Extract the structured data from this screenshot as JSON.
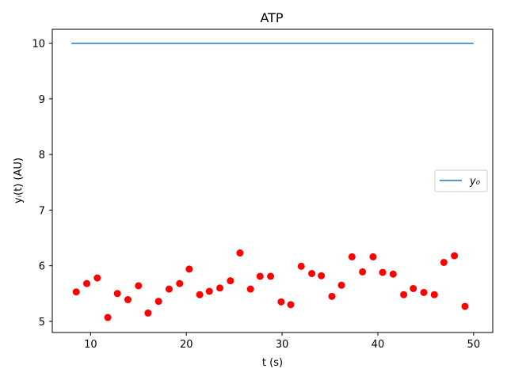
{
  "chart_data": {
    "type": "scatter",
    "title": "ATP",
    "xlabel": "t (s)",
    "ylabel": "yᵢ(t) (AU)",
    "xlim": [
      6,
      52
    ],
    "ylim": [
      4.8,
      10.25
    ],
    "xticks": [
      10,
      20,
      30,
      40,
      50
    ],
    "yticks": [
      5,
      6,
      7,
      8,
      9,
      10
    ],
    "grid": false,
    "legend": {
      "placement": "right",
      "entries": [
        "y₀"
      ]
    },
    "series": [
      {
        "name": "y₀",
        "kind": "line",
        "color": "#1f77b4",
        "x": [
          8,
          50
        ],
        "y": [
          10,
          10
        ]
      },
      {
        "kind": "scatter",
        "color": "#ff0000",
        "x": [
          8.5,
          9.6,
          10.7,
          11.8,
          12.8,
          13.9,
          15.0,
          16.0,
          17.1,
          18.2,
          19.3,
          20.3,
          21.4,
          22.4,
          23.5,
          24.6,
          25.6,
          26.7,
          27.7,
          28.8,
          29.9,
          30.9,
          32.0,
          33.1,
          34.1,
          35.2,
          36.2,
          37.3,
          38.4,
          39.5,
          40.5,
          41.6,
          42.7,
          43.7,
          44.8,
          45.9,
          46.9,
          48.0,
          49.1
        ],
        "y": [
          5.53,
          5.68,
          5.78,
          5.07,
          5.5,
          5.39,
          5.64,
          5.15,
          5.36,
          5.58,
          5.68,
          5.94,
          5.48,
          5.54,
          5.6,
          5.73,
          6.23,
          5.58,
          5.81,
          5.81,
          5.35,
          5.3,
          5.99,
          5.86,
          5.82,
          5.45,
          5.65,
          6.16,
          5.89,
          6.16,
          5.88,
          5.85,
          5.48,
          5.59,
          5.52,
          5.48,
          6.06,
          6.18,
          5.27
        ]
      }
    ]
  }
}
